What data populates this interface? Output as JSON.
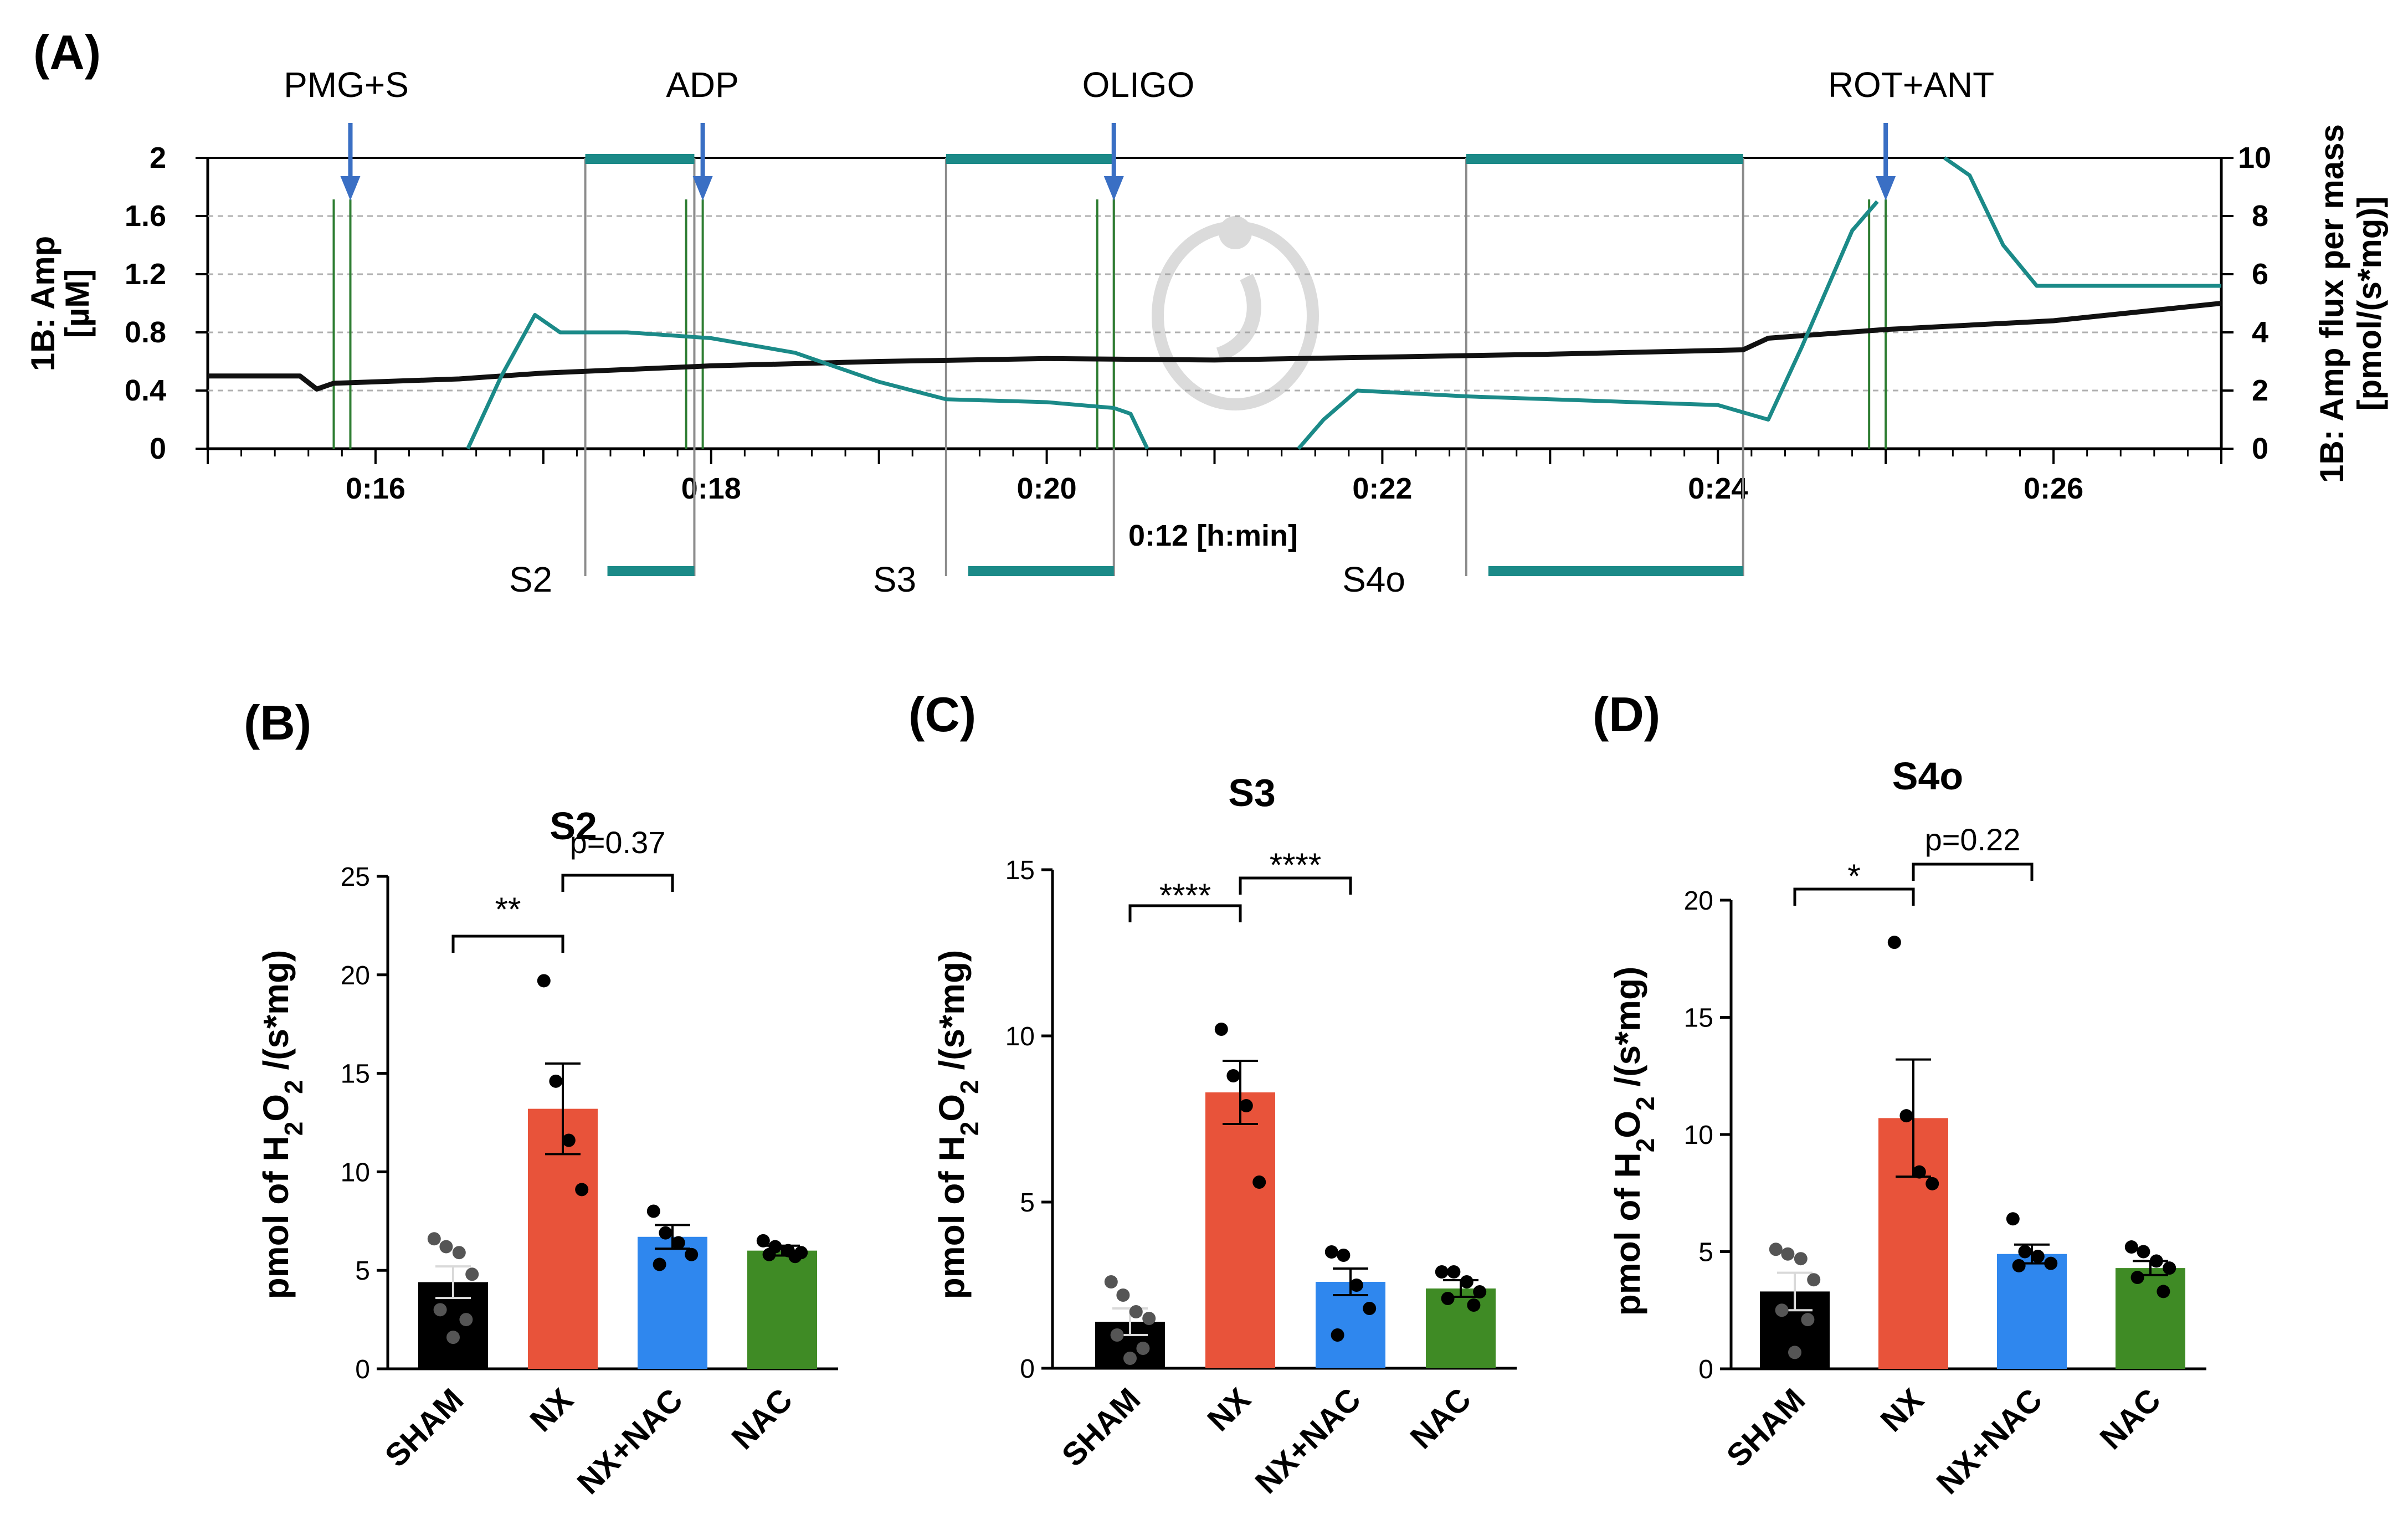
{
  "panel_a": {
    "letter": "(A)",
    "left_axis_label": [
      "1B: Amp",
      "[µM]"
    ],
    "right_axis_label": [
      "1B: Amp flux per mass",
      "[pmol/(s*mg)]"
    ],
    "x_axis_label": "0:12 [h:min]",
    "left_ticks": [
      "0",
      "0.4",
      "0.8",
      "1.2",
      "1.6",
      "2"
    ],
    "right_ticks": [
      "0",
      "2",
      "4",
      "6",
      "8",
      "10"
    ],
    "x_ticks": [
      "0:16",
      "0:18",
      "0:20",
      "0:22",
      "0:24",
      "0:26"
    ],
    "injections": [
      {
        "label": "PMG+S",
        "time_min": 15.85
      },
      {
        "label": "ADP",
        "time_min": 17.95
      },
      {
        "label": "OLIGO",
        "time_min": 20.4
      },
      {
        "label": "ROT+ANT",
        "time_min": 25.0
      }
    ],
    "states": [
      {
        "label": "S2",
        "start_min": 17.25,
        "end_min": 17.9
      },
      {
        "label": "S3",
        "start_min": 19.4,
        "end_min": 20.4
      },
      {
        "label": "S4o",
        "start_min": 22.5,
        "end_min": 24.15
      }
    ],
    "colors": {
      "flux": "#1b8a88",
      "concentration": "#111111",
      "injection": "#2e7d32",
      "arrow": "#3a6fc4",
      "grid": "#b0b0b0"
    }
  },
  "chart_data": [
    {
      "type": "line",
      "panel": "A",
      "title": "",
      "xlabel": "0:12 [h:min]",
      "xlim": [
        15.0,
        27.0
      ],
      "ylabel_left": "1B: Amp [µM]",
      "ylim_left": [
        0,
        2
      ],
      "ylabel_right": "1B: Amp flux per mass [pmol/(s*mg)]",
      "ylim_right": [
        0,
        10
      ],
      "grid": true,
      "series": [
        {
          "name": "1B: Amp (µM)",
          "axis": "left",
          "points": [
            [
              15.0,
              0.5
            ],
            [
              15.55,
              0.5
            ],
            [
              15.65,
              0.41
            ],
            [
              15.75,
              0.45
            ],
            [
              16.5,
              0.48
            ],
            [
              17.0,
              0.52
            ],
            [
              18.0,
              0.57
            ],
            [
              19.0,
              0.6
            ],
            [
              20.0,
              0.62
            ],
            [
              21.0,
              0.61
            ],
            [
              22.0,
              0.63
            ],
            [
              23.0,
              0.65
            ],
            [
              24.15,
              0.68
            ],
            [
              24.3,
              0.76
            ],
            [
              25.0,
              0.82
            ],
            [
              26.0,
              0.88
            ],
            [
              27.0,
              1.0
            ]
          ]
        },
        {
          "name": "1B: Amp flux per mass (pmol/(s*mg))",
          "axis": "right",
          "segments": [
            [
              [
                16.55,
                0.0
              ],
              [
                16.75,
                2.5
              ],
              [
                16.95,
                4.6
              ],
              [
                17.1,
                4.0
              ],
              [
                17.5,
                4.0
              ],
              [
                18.0,
                3.8
              ],
              [
                18.5,
                3.3
              ],
              [
                19.0,
                2.3
              ],
              [
                19.4,
                1.7
              ],
              [
                20.0,
                1.6
              ],
              [
                20.4,
                1.4
              ],
              [
                20.5,
                1.2
              ],
              [
                20.6,
                0.0
              ]
            ],
            [
              [
                21.5,
                0.0
              ],
              [
                21.65,
                1.0
              ],
              [
                21.85,
                2.0
              ],
              [
                22.5,
                1.8
              ],
              [
                23.0,
                1.7
              ],
              [
                23.5,
                1.6
              ],
              [
                24.0,
                1.5
              ],
              [
                24.3,
                1.0
              ],
              [
                24.5,
                3.5
              ],
              [
                24.8,
                7.5
              ],
              [
                24.95,
                8.5
              ]
            ],
            [
              [
                25.35,
                10.0
              ],
              [
                25.5,
                9.4
              ],
              [
                25.7,
                7.0
              ],
              [
                25.9,
                5.6
              ],
              [
                26.2,
                5.6
              ],
              [
                27.0,
                5.6
              ]
            ]
          ]
        }
      ]
    },
    {
      "type": "bar",
      "panel": "B",
      "letter": "(B)",
      "title": "S2",
      "ylabel": "pmol of H2O2 /(s*mg)",
      "ylim": [
        0,
        25
      ],
      "yticks": [
        "0",
        "5",
        "10",
        "15",
        "20",
        "25"
      ],
      "categories": [
        "SHAM",
        "NX",
        "NX+NAC",
        "NAC"
      ],
      "values": [
        4.4,
        13.2,
        6.7,
        6.0
      ],
      "errors": [
        0.8,
        2.3,
        0.6,
        0.25
      ],
      "points": [
        [
          6.6,
          6.2,
          5.9,
          4.8,
          3.0,
          2.5,
          1.6
        ],
        [
          19.7,
          14.6,
          11.6,
          9.1
        ],
        [
          8.0,
          6.9,
          6.4,
          5.8,
          5.3
        ],
        [
          6.5,
          6.2,
          6.0,
          5.9,
          5.8,
          5.7
        ]
      ],
      "annotations": [
        {
          "from": "SHAM",
          "to": "NX",
          "label": "**"
        },
        {
          "from": "NX",
          "to": "NX+NAC",
          "label": "p=0.37"
        }
      ],
      "colors": [
        "#000000",
        "#e8533a",
        "#2f87ee",
        "#3f8b25"
      ]
    },
    {
      "type": "bar",
      "panel": "C",
      "letter": "(C)",
      "title": "S3",
      "ylabel": "pmol of H2O2 /(s*mg)",
      "ylim": [
        0,
        15
      ],
      "yticks": [
        "0",
        "5",
        "10",
        "15"
      ],
      "categories": [
        "SHAM",
        "NX",
        "NX+NAC",
        "NAC"
      ],
      "values": [
        1.4,
        8.3,
        2.6,
        2.4
      ],
      "errors": [
        0.4,
        0.95,
        0.4,
        0.25
      ],
      "points": [
        [
          2.6,
          2.2,
          1.7,
          1.5,
          1.0,
          0.6,
          0.3
        ],
        [
          10.2,
          8.8,
          7.9,
          5.6
        ],
        [
          3.5,
          3.4,
          2.5,
          1.8,
          1.0
        ],
        [
          2.9,
          2.9,
          2.6,
          2.3,
          2.1,
          1.9
        ]
      ],
      "annotations": [
        {
          "from": "SHAM",
          "to": "NX",
          "label": "****"
        },
        {
          "from": "NX",
          "to": "NX+NAC",
          "label": "****"
        }
      ],
      "colors": [
        "#000000",
        "#e8533a",
        "#2f87ee",
        "#3f8b25"
      ]
    },
    {
      "type": "bar",
      "panel": "D",
      "letter": "(D)",
      "title": "S4o",
      "ylabel": "pmol of H2O2 /(s*mg)",
      "ylim": [
        0,
        20
      ],
      "yticks": [
        "0",
        "5",
        "10",
        "15",
        "20"
      ],
      "categories": [
        "SHAM",
        "NX",
        "NX+NAC",
        "NAC"
      ],
      "values": [
        3.3,
        10.7,
        4.9,
        4.3
      ],
      "errors": [
        0.8,
        2.5,
        0.4,
        0.3
      ],
      "points": [
        [
          5.1,
          4.9,
          4.7,
          3.8,
          2.5,
          2.1,
          0.7
        ],
        [
          18.2,
          10.8,
          8.4,
          7.9
        ],
        [
          6.4,
          5.0,
          4.8,
          4.5,
          4.4
        ],
        [
          5.2,
          5.0,
          4.6,
          4.3,
          3.9,
          3.3
        ]
      ],
      "annotations": [
        {
          "from": "SHAM",
          "to": "NX",
          "label": "*"
        },
        {
          "from": "NX",
          "to": "NX+NAC",
          "label": "p=0.22"
        }
      ],
      "colors": [
        "#000000",
        "#e8533a",
        "#2f87ee",
        "#3f8b25"
      ]
    }
  ]
}
